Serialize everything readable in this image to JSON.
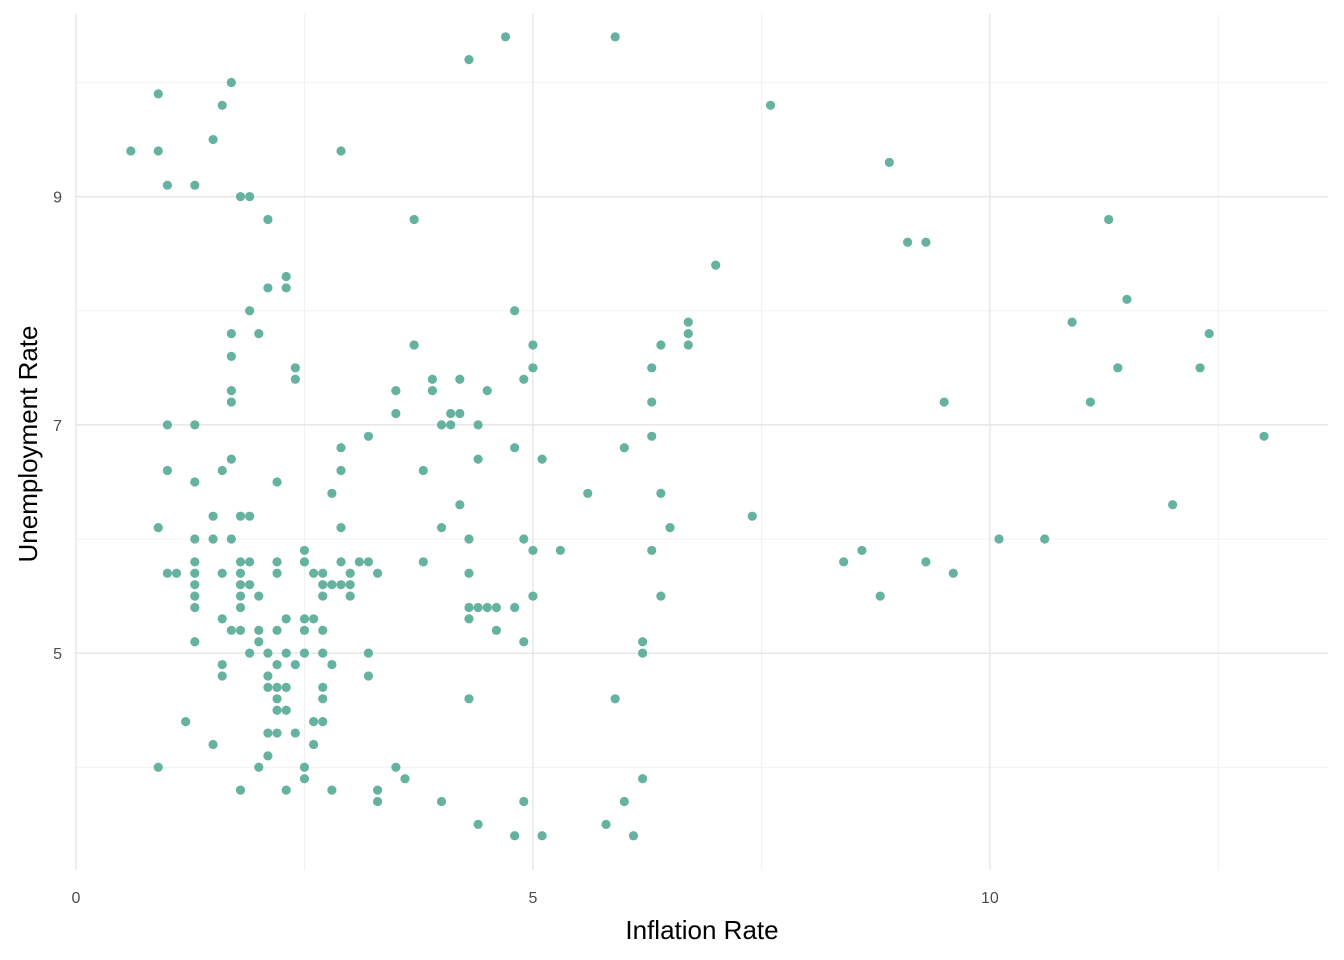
{
  "chart_data": {
    "type": "scatter",
    "title": "",
    "xlabel": "Inflation Rate",
    "ylabel": "Unemployment Rate",
    "xlim": [
      0,
      13.7
    ],
    "ylim": [
      3.1,
      10.6
    ],
    "x_ticks": [
      0,
      5,
      10
    ],
    "x_tick_labels": [
      "0",
      "5",
      "10"
    ],
    "y_ticks": [
      5,
      7,
      9
    ],
    "y_tick_labels": [
      "5",
      "7",
      "9"
    ],
    "grid": true,
    "legend": "none",
    "point_color": "#66b2a0",
    "points": [
      [
        0.6,
        9.4
      ],
      [
        0.9,
        9.9
      ],
      [
        0.9,
        9.4
      ],
      [
        1.0,
        9.1
      ],
      [
        1.3,
        9.1
      ],
      [
        1.5,
        9.5
      ],
      [
        1.6,
        9.8
      ],
      [
        1.7,
        10.0
      ],
      [
        1.8,
        9.0
      ],
      [
        1.9,
        9.0
      ],
      [
        2.1,
        8.8
      ],
      [
        2.3,
        8.3
      ],
      [
        2.3,
        8.2
      ],
      [
        2.1,
        8.2
      ],
      [
        1.9,
        8.0
      ],
      [
        1.7,
        7.8
      ],
      [
        2.0,
        7.8
      ],
      [
        1.7,
        7.6
      ],
      [
        2.4,
        7.5
      ],
      [
        2.4,
        7.4
      ],
      [
        1.7,
        7.3
      ],
      [
        1.7,
        7.2
      ],
      [
        1.0,
        7.0
      ],
      [
        1.3,
        7.0
      ],
      [
        1.7,
        6.7
      ],
      [
        1.0,
        6.6
      ],
      [
        1.6,
        6.6
      ],
      [
        1.3,
        6.5
      ],
      [
        2.2,
        6.5
      ],
      [
        1.5,
        6.2
      ],
      [
        1.8,
        6.2
      ],
      [
        1.9,
        6.2
      ],
      [
        0.9,
        6.1
      ],
      [
        1.3,
        6.0
      ],
      [
        1.5,
        6.0
      ],
      [
        1.7,
        6.0
      ],
      [
        1.3,
        5.8
      ],
      [
        1.6,
        5.7
      ],
      [
        1.3,
        5.7
      ],
      [
        1.0,
        5.7
      ],
      [
        1.1,
        5.7
      ],
      [
        1.3,
        5.6
      ],
      [
        1.3,
        5.5
      ],
      [
        1.3,
        5.4
      ],
      [
        1.8,
        5.8
      ],
      [
        1.9,
        5.8
      ],
      [
        1.8,
        5.7
      ],
      [
        1.8,
        5.6
      ],
      [
        1.9,
        5.6
      ],
      [
        1.8,
        5.5
      ],
      [
        2.0,
        5.5
      ],
      [
        1.8,
        5.4
      ],
      [
        1.6,
        5.3
      ],
      [
        1.7,
        5.2
      ],
      [
        1.8,
        5.2
      ],
      [
        2.0,
        5.2
      ],
      [
        1.3,
        5.1
      ],
      [
        2.0,
        5.1
      ],
      [
        1.9,
        5.0
      ],
      [
        2.1,
        5.0
      ],
      [
        1.6,
        4.9
      ],
      [
        2.2,
        4.9
      ],
      [
        1.6,
        4.8
      ],
      [
        2.1,
        4.8
      ],
      [
        2.1,
        4.7
      ],
      [
        2.2,
        4.7
      ],
      [
        2.3,
        4.7
      ],
      [
        2.2,
        4.6
      ],
      [
        2.2,
        4.5
      ],
      [
        2.3,
        4.5
      ],
      [
        1.2,
        4.4
      ],
      [
        2.1,
        4.3
      ],
      [
        2.2,
        4.3
      ],
      [
        2.4,
        4.3
      ],
      [
        1.5,
        4.2
      ],
      [
        2.1,
        4.1
      ],
      [
        0.9,
        4.0
      ],
      [
        2.0,
        4.0
      ],
      [
        1.8,
        3.8
      ],
      [
        2.3,
        3.8
      ],
      [
        2.2,
        5.8
      ],
      [
        2.2,
        5.7
      ],
      [
        2.3,
        5.3
      ],
      [
        2.2,
        5.2
      ],
      [
        2.3,
        5.0
      ],
      [
        2.4,
        4.9
      ],
      [
        2.5,
        5.9
      ],
      [
        2.5,
        5.8
      ],
      [
        2.6,
        5.7
      ],
      [
        2.7,
        5.7
      ],
      [
        2.7,
        5.6
      ],
      [
        2.8,
        5.6
      ],
      [
        2.9,
        5.6
      ],
      [
        3.0,
        5.6
      ],
      [
        2.9,
        5.8
      ],
      [
        3.1,
        5.8
      ],
      [
        3.2,
        5.8
      ],
      [
        3.0,
        5.7
      ],
      [
        3.3,
        5.7
      ],
      [
        3.0,
        5.5
      ],
      [
        2.7,
        5.5
      ],
      [
        2.5,
        5.3
      ],
      [
        2.6,
        5.3
      ],
      [
        2.5,
        5.2
      ],
      [
        2.7,
        5.2
      ],
      [
        2.5,
        5.0
      ],
      [
        2.7,
        5.0
      ],
      [
        2.8,
        4.9
      ],
      [
        2.7,
        4.7
      ],
      [
        2.7,
        4.6
      ],
      [
        2.6,
        4.4
      ],
      [
        2.7,
        4.4
      ],
      [
        2.6,
        4.2
      ],
      [
        2.5,
        4.0
      ],
      [
        2.5,
        3.9
      ],
      [
        2.8,
        3.8
      ],
      [
        3.2,
        5.0
      ],
      [
        3.2,
        4.8
      ],
      [
        3.3,
        3.8
      ],
      [
        3.3,
        3.7
      ],
      [
        3.5,
        4.0
      ],
      [
        3.6,
        3.9
      ],
      [
        4.0,
        3.7
      ],
      [
        4.4,
        3.5
      ],
      [
        4.8,
        3.4
      ],
      [
        4.9,
        3.7
      ],
      [
        5.1,
        3.4
      ],
      [
        5.8,
        3.5
      ],
      [
        5.9,
        4.6
      ],
      [
        6.0,
        3.7
      ],
      [
        6.1,
        3.4
      ],
      [
        6.2,
        3.9
      ],
      [
        4.3,
        4.6
      ],
      [
        2.9,
        9.4
      ],
      [
        2.9,
        6.8
      ],
      [
        3.2,
        6.9
      ],
      [
        2.9,
        6.6
      ],
      [
        2.8,
        6.4
      ],
      [
        2.9,
        6.1
      ],
      [
        3.5,
        7.3
      ],
      [
        3.5,
        7.1
      ],
      [
        3.7,
        7.7
      ],
      [
        3.7,
        8.8
      ],
      [
        3.8,
        6.6
      ],
      [
        3.8,
        5.8
      ],
      [
        3.9,
        7.4
      ],
      [
        3.9,
        7.3
      ],
      [
        4.0,
        7.0
      ],
      [
        4.1,
        7.1
      ],
      [
        4.1,
        7.0
      ],
      [
        4.2,
        7.1
      ],
      [
        4.2,
        7.4
      ],
      [
        4.2,
        6.3
      ],
      [
        4.0,
        6.1
      ],
      [
        4.3,
        6.0
      ],
      [
        4.3,
        5.7
      ],
      [
        4.4,
        7.0
      ],
      [
        4.4,
        6.7
      ],
      [
        4.5,
        7.3
      ],
      [
        4.3,
        5.4
      ],
      [
        4.4,
        5.4
      ],
      [
        4.5,
        5.4
      ],
      [
        4.6,
        5.4
      ],
      [
        4.3,
        5.3
      ],
      [
        4.6,
        5.2
      ],
      [
        4.8,
        5.4
      ],
      [
        4.9,
        5.1
      ],
      [
        4.8,
        6.8
      ],
      [
        4.9,
        6.0
      ],
      [
        5.0,
        5.9
      ],
      [
        5.0,
        5.5
      ],
      [
        4.9,
        7.4
      ],
      [
        5.0,
        7.5
      ],
      [
        5.0,
        7.7
      ],
      [
        4.8,
        8.0
      ],
      [
        5.1,
        6.7
      ],
      [
        5.3,
        5.9
      ],
      [
        4.3,
        10.2
      ],
      [
        4.7,
        10.4
      ],
      [
        5.9,
        10.4
      ],
      [
        5.6,
        6.4
      ],
      [
        6.0,
        6.8
      ],
      [
        6.2,
        5.1
      ],
      [
        6.2,
        5.0
      ],
      [
        6.3,
        7.5
      ],
      [
        6.3,
        7.2
      ],
      [
        6.3,
        6.9
      ],
      [
        6.3,
        5.9
      ],
      [
        6.4,
        7.7
      ],
      [
        6.4,
        6.4
      ],
      [
        6.4,
        5.5
      ],
      [
        6.5,
        6.1
      ],
      [
        6.7,
        7.9
      ],
      [
        6.7,
        7.8
      ],
      [
        6.7,
        7.7
      ],
      [
        7.0,
        8.4
      ],
      [
        7.4,
        6.2
      ],
      [
        7.6,
        9.8
      ],
      [
        8.4,
        5.8
      ],
      [
        8.6,
        5.9
      ],
      [
        8.8,
        5.5
      ],
      [
        8.9,
        9.3
      ],
      [
        9.1,
        8.6
      ],
      [
        9.3,
        8.6
      ],
      [
        9.3,
        5.8
      ],
      [
        9.5,
        7.2
      ],
      [
        9.6,
        5.7
      ],
      [
        10.1,
        6.0
      ],
      [
        10.6,
        6.0
      ],
      [
        10.9,
        7.9
      ],
      [
        11.1,
        7.2
      ],
      [
        11.3,
        8.8
      ],
      [
        11.4,
        7.5
      ],
      [
        11.5,
        8.1
      ],
      [
        12.0,
        6.3
      ],
      [
        12.3,
        7.5
      ],
      [
        12.4,
        7.8
      ],
      [
        13.0,
        6.9
      ]
    ]
  }
}
